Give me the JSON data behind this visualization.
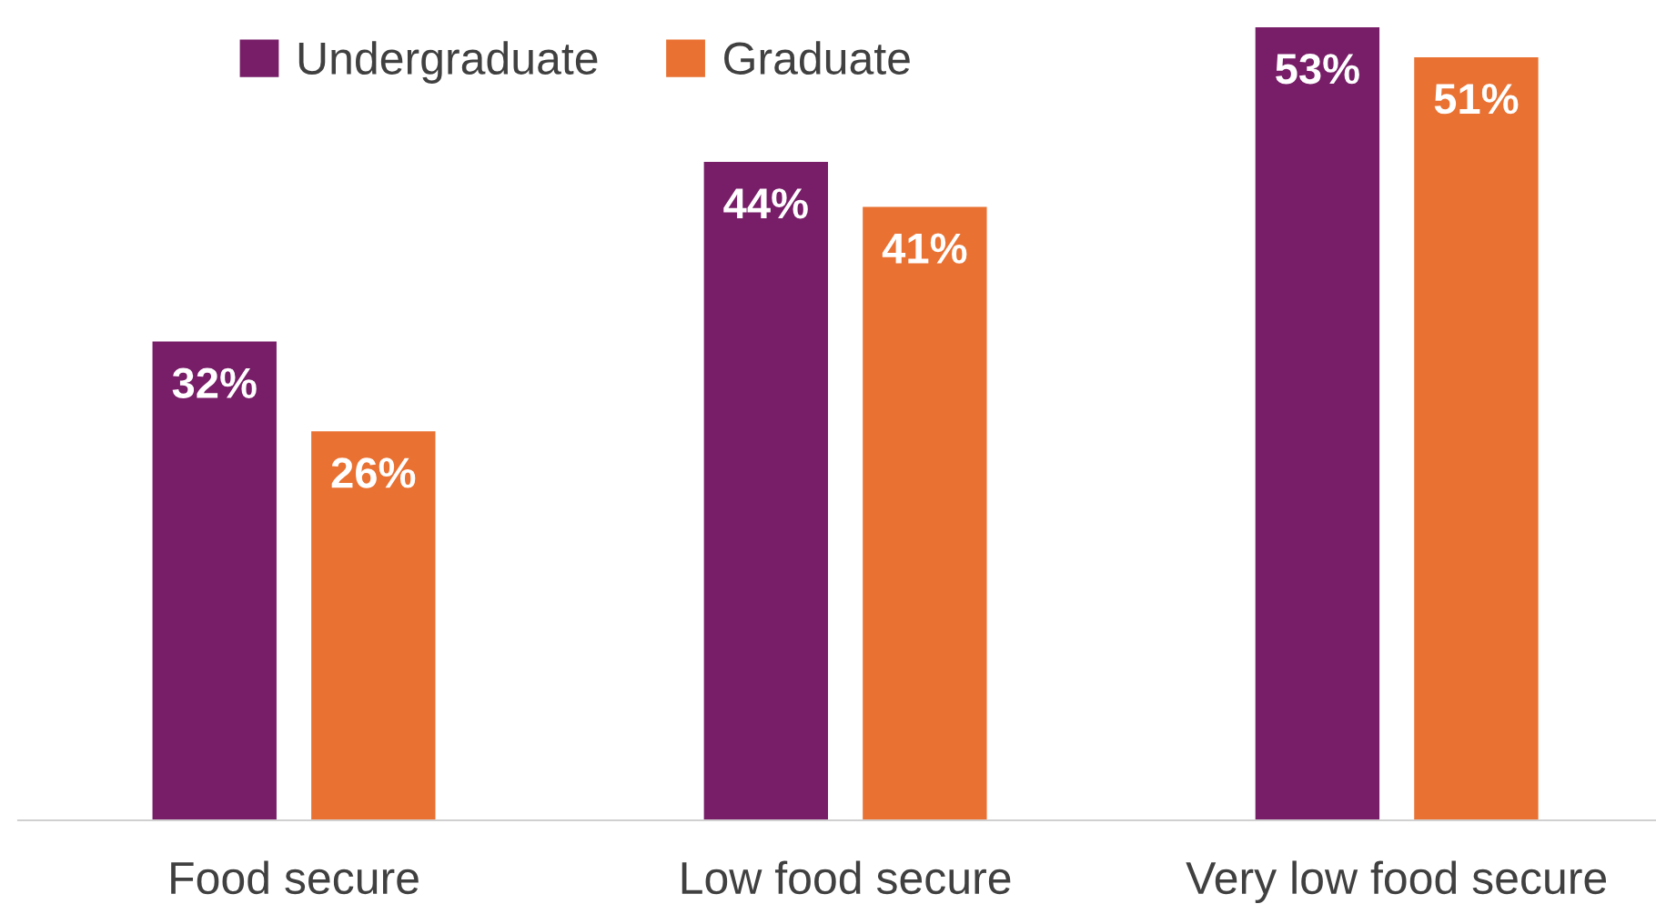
{
  "chart_data": {
    "type": "bar",
    "categories": [
      "Food secure",
      "Low food secure",
      "Very low food secure"
    ],
    "series": [
      {
        "name": "Undergraduate",
        "color": "#781e68",
        "values": [
          32,
          44,
          53
        ],
        "value_labels": [
          "32%",
          "44%",
          "53%"
        ]
      },
      {
        "name": "Graduate",
        "color": "#e97132",
        "values": [
          26,
          41,
          51
        ],
        "value_labels": [
          "26%",
          "41%",
          "51%"
        ]
      }
    ],
    "legend": "top left",
    "grid": false
  }
}
